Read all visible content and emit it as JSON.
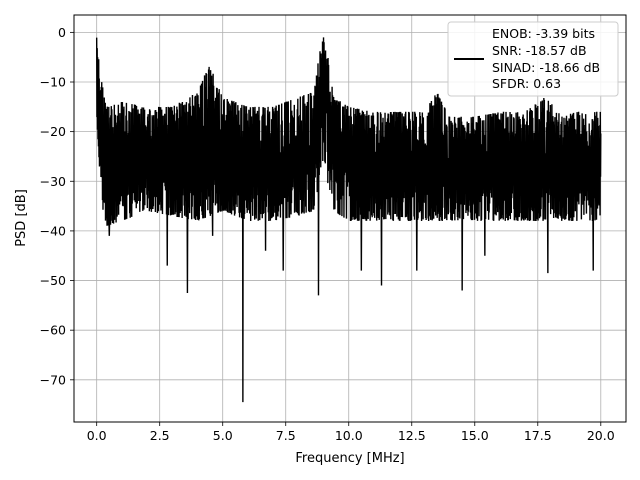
{
  "chart_data": {
    "type": "line",
    "title": "",
    "xlabel": "Frequency [MHz]",
    "ylabel": "PSD [dB]",
    "xlim": [
      -0.9,
      21.0
    ],
    "ylim": [
      -78.5,
      3.5
    ],
    "grid": true,
    "x_ticks": [
      0.0,
      2.5,
      5.0,
      7.5,
      10.0,
      12.5,
      15.0,
      17.5,
      20.0
    ],
    "x_tick_labels": [
      "0.0",
      "2.5",
      "5.0",
      "7.5",
      "10.0",
      "12.5",
      "15.0",
      "17.5",
      "20.0"
    ],
    "y_ticks": [
      0,
      -10,
      -20,
      -30,
      -40,
      -50,
      -60,
      -70
    ],
    "y_tick_labels": [
      "0",
      "−10",
      "−20",
      "−30",
      "−40",
      "−50",
      "−60",
      "−70"
    ],
    "series": [
      {
        "color": "#000000",
        "envelope": {
          "x": [
            0.0,
            0.05,
            0.2,
            0.4,
            1.0,
            2.0,
            3.0,
            4.0,
            4.5,
            5.0,
            6.0,
            7.0,
            8.0,
            8.6,
            8.85,
            9.0,
            9.15,
            9.4,
            10.0,
            11.0,
            12.0,
            13.0,
            13.5,
            14.0,
            15.0,
            16.0,
            17.0,
            17.8,
            18.5,
            19.0,
            20.0
          ],
          "upper": [
            -1,
            -4,
            -10,
            -15,
            -14,
            -15,
            -15,
            -12,
            -6,
            -13,
            -15,
            -15,
            -13,
            -12,
            -4,
            -1,
            -4,
            -13,
            -15,
            -16,
            -16,
            -16,
            -12,
            -17,
            -17,
            -16,
            -16,
            -13,
            -17,
            -16,
            -16
          ],
          "lower": [
            -16,
            -22,
            -35,
            -39,
            -38,
            -36,
            -37,
            -38,
            -37,
            -36,
            -38,
            -38,
            -37,
            -36,
            -30,
            -25,
            -30,
            -36,
            -38,
            -38,
            -38,
            -38,
            -38,
            -38,
            -38,
            -38,
            -38,
            -38,
            -38,
            -38,
            -38
          ]
        },
        "notable_dips": [
          {
            "x": 0.5,
            "y": -41
          },
          {
            "x": 2.8,
            "y": -47
          },
          {
            "x": 3.6,
            "y": -52.5
          },
          {
            "x": 4.6,
            "y": -41
          },
          {
            "x": 5.8,
            "y": -74.5
          },
          {
            "x": 6.7,
            "y": -44
          },
          {
            "x": 7.4,
            "y": -48
          },
          {
            "x": 8.8,
            "y": -53
          },
          {
            "x": 10.5,
            "y": -48
          },
          {
            "x": 11.3,
            "y": -51
          },
          {
            "x": 12.7,
            "y": -48
          },
          {
            "x": 14.5,
            "y": -52
          },
          {
            "x": 15.4,
            "y": -45
          },
          {
            "x": 17.9,
            "y": -48.5
          },
          {
            "x": 19.7,
            "y": -48
          }
        ]
      }
    ],
    "legend": {
      "placement": "top-right",
      "lines": [
        "ENOB: -3.39 bits",
        "SNR: -18.57 dB",
        "SINAD: -18.66 dB",
        "SFDR: 0.63"
      ]
    }
  }
}
